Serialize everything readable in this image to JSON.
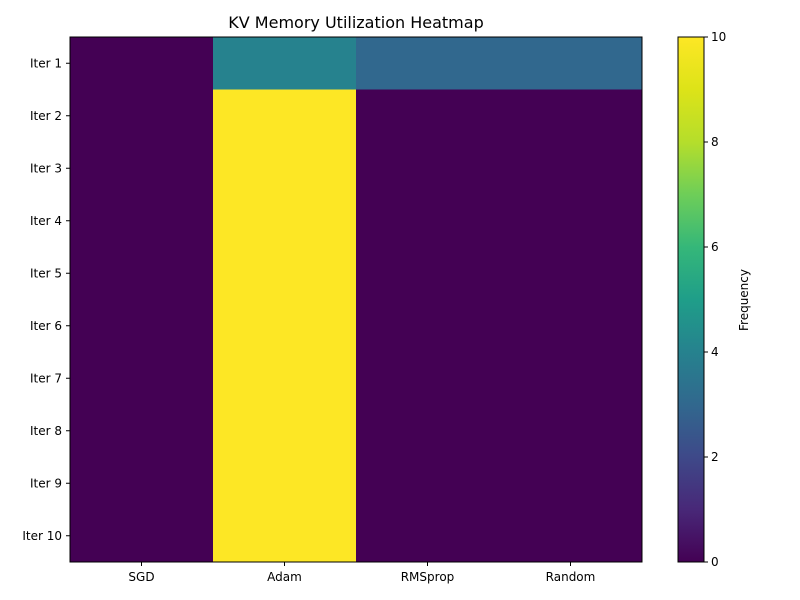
{
  "chart_data": {
    "type": "heatmap",
    "title": "KV Memory Utilization Heatmap",
    "xlabel": "",
    "ylabel": "",
    "x_categories": [
      "SGD",
      "Adam",
      "RMSprop",
      "Random"
    ],
    "y_categories": [
      "Iter 1",
      "Iter 2",
      "Iter 3",
      "Iter 4",
      "Iter 5",
      "Iter 6",
      "Iter 7",
      "Iter 8",
      "Iter 9",
      "Iter 10"
    ],
    "values": [
      [
        0,
        4,
        3,
        3
      ],
      [
        0,
        10,
        0,
        0
      ],
      [
        0,
        10,
        0,
        0
      ],
      [
        0,
        10,
        0,
        0
      ],
      [
        0,
        10,
        0,
        0
      ],
      [
        0,
        10,
        0,
        0
      ],
      [
        0,
        10,
        0,
        0
      ],
      [
        0,
        10,
        0,
        0
      ],
      [
        0,
        10,
        0,
        0
      ],
      [
        0,
        10,
        0,
        0
      ]
    ],
    "colorbar": {
      "label": "Frequency",
      "range": [
        0,
        10
      ],
      "ticks": [
        0,
        2,
        4,
        6,
        8,
        10
      ]
    },
    "colormap": "viridis"
  }
}
